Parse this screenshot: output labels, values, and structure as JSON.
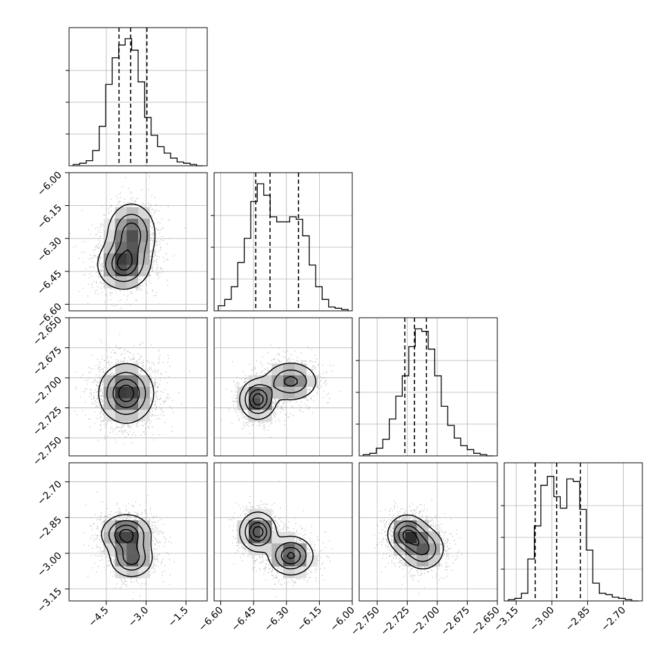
{
  "chart_data": {
    "type": "corner",
    "grid": true,
    "parameters": [
      {
        "range": [
          -5.9,
          -0.7
        ],
        "ticks": [
          -4.5,
          -3.0,
          -1.5
        ],
        "tick_labels": [
          "−4.5",
          "−3.0",
          "−1.5"
        ],
        "quantiles": [
          -4.02,
          -3.58,
          -2.97
        ]
      },
      {
        "range": [
          -6.63,
          -6.0
        ],
        "ticks": [
          -6.6,
          -6.45,
          -6.3,
          -6.15,
          -6.0
        ],
        "tick_labels": [
          "−6.60",
          "−6.45",
          "−6.30",
          "−6.15",
          "−6.00"
        ],
        "quantiles": [
          -6.44,
          -6.375,
          -6.245
        ]
      },
      {
        "range": [
          -2.765,
          -2.65
        ],
        "ticks": [
          -2.75,
          -2.725,
          -2.7,
          -2.675,
          -2.65
        ],
        "tick_labels": [
          "−2.750",
          "−2.725",
          "−2.700",
          "−2.675",
          "−2.650"
        ],
        "quantiles": [
          -2.727,
          -2.719,
          -2.709
        ]
      },
      {
        "range": [
          -3.2,
          -2.62
        ],
        "ticks": [
          -3.15,
          -3.0,
          -2.85,
          -2.7
        ],
        "tick_labels": [
          "−3.15",
          "−3.00",
          "−2.85",
          "−2.70"
        ],
        "quantiles": [
          -3.07,
          -2.98,
          -2.88
        ]
      }
    ],
    "histograms": [
      {
        "counts": [
          0.01,
          0.02,
          0.04,
          0.12,
          0.31,
          0.64,
          0.85,
          0.95,
          1.0,
          0.91,
          0.66,
          0.38,
          0.24,
          0.15,
          0.1,
          0.06,
          0.03,
          0.02,
          0.01,
          0.0
        ]
      },
      {
        "counts": [
          0.04,
          0.09,
          0.19,
          0.38,
          0.57,
          0.86,
          1.0,
          0.91,
          0.74,
          0.7,
          0.7,
          0.74,
          0.72,
          0.59,
          0.36,
          0.19,
          0.09,
          0.03,
          0.02,
          0.01
        ]
      },
      {
        "counts": [
          0.01,
          0.02,
          0.06,
          0.13,
          0.29,
          0.47,
          0.63,
          0.86,
          1.0,
          0.98,
          0.84,
          0.63,
          0.39,
          0.24,
          0.14,
          0.08,
          0.05,
          0.02,
          0.01,
          0.0
        ]
      },
      {
        "counts": [
          0.01,
          0.02,
          0.06,
          0.33,
          0.59,
          0.91,
          0.98,
          0.82,
          0.73,
          0.96,
          0.94,
          0.72,
          0.4,
          0.14,
          0.06,
          0.05,
          0.03,
          0.02,
          0.01,
          0.0
        ]
      }
    ],
    "pairs": [
      {
        "row": 1,
        "col": 0,
        "modes": [
          {
            "x": -3.85,
            "y": -6.42,
            "sx": 0.48,
            "sy": 0.055,
            "w": 1.0
          },
          {
            "x": -3.55,
            "y": -6.28,
            "sx": 0.45,
            "sy": 0.07,
            "w": 0.9
          }
        ]
      },
      {
        "row": 2,
        "col": 0,
        "modes": [
          {
            "x": -3.75,
            "y": -2.713,
            "sx": 0.5,
            "sy": 0.012,
            "w": 1.0
          }
        ]
      },
      {
        "row": 2,
        "col": 1,
        "modes": [
          {
            "x": -6.43,
            "y": -2.718,
            "sx": 0.04,
            "sy": 0.008,
            "w": 1.0
          },
          {
            "x": -6.28,
            "y": -2.703,
            "sx": 0.06,
            "sy": 0.008,
            "w": 0.7
          }
        ]
      },
      {
        "row": 3,
        "col": 0,
        "modes": [
          {
            "x": -3.75,
            "y": -2.92,
            "sx": 0.45,
            "sy": 0.04,
            "w": 1.0
          },
          {
            "x": -3.55,
            "y": -3.02,
            "sx": 0.4,
            "sy": 0.04,
            "w": 0.8
          }
        ]
      },
      {
        "row": 3,
        "col": 1,
        "modes": [
          {
            "x": -6.43,
            "y": -2.91,
            "sx": 0.04,
            "sy": 0.04,
            "w": 1.0
          },
          {
            "x": -6.28,
            "y": -3.01,
            "sx": 0.05,
            "sy": 0.04,
            "w": 0.9
          }
        ]
      },
      {
        "row": 3,
        "col": 2,
        "modes": [
          {
            "x": -2.725,
            "y": -2.92,
            "sx": 0.008,
            "sy": 0.04,
            "w": 1.0
          },
          {
            "x": -2.712,
            "y": -2.98,
            "sx": 0.009,
            "sy": 0.045,
            "w": 0.8
          }
        ]
      }
    ],
    "colors": {
      "line": "#000000",
      "grid": "#b0b0b0",
      "points": "#9a9a9a"
    }
  }
}
